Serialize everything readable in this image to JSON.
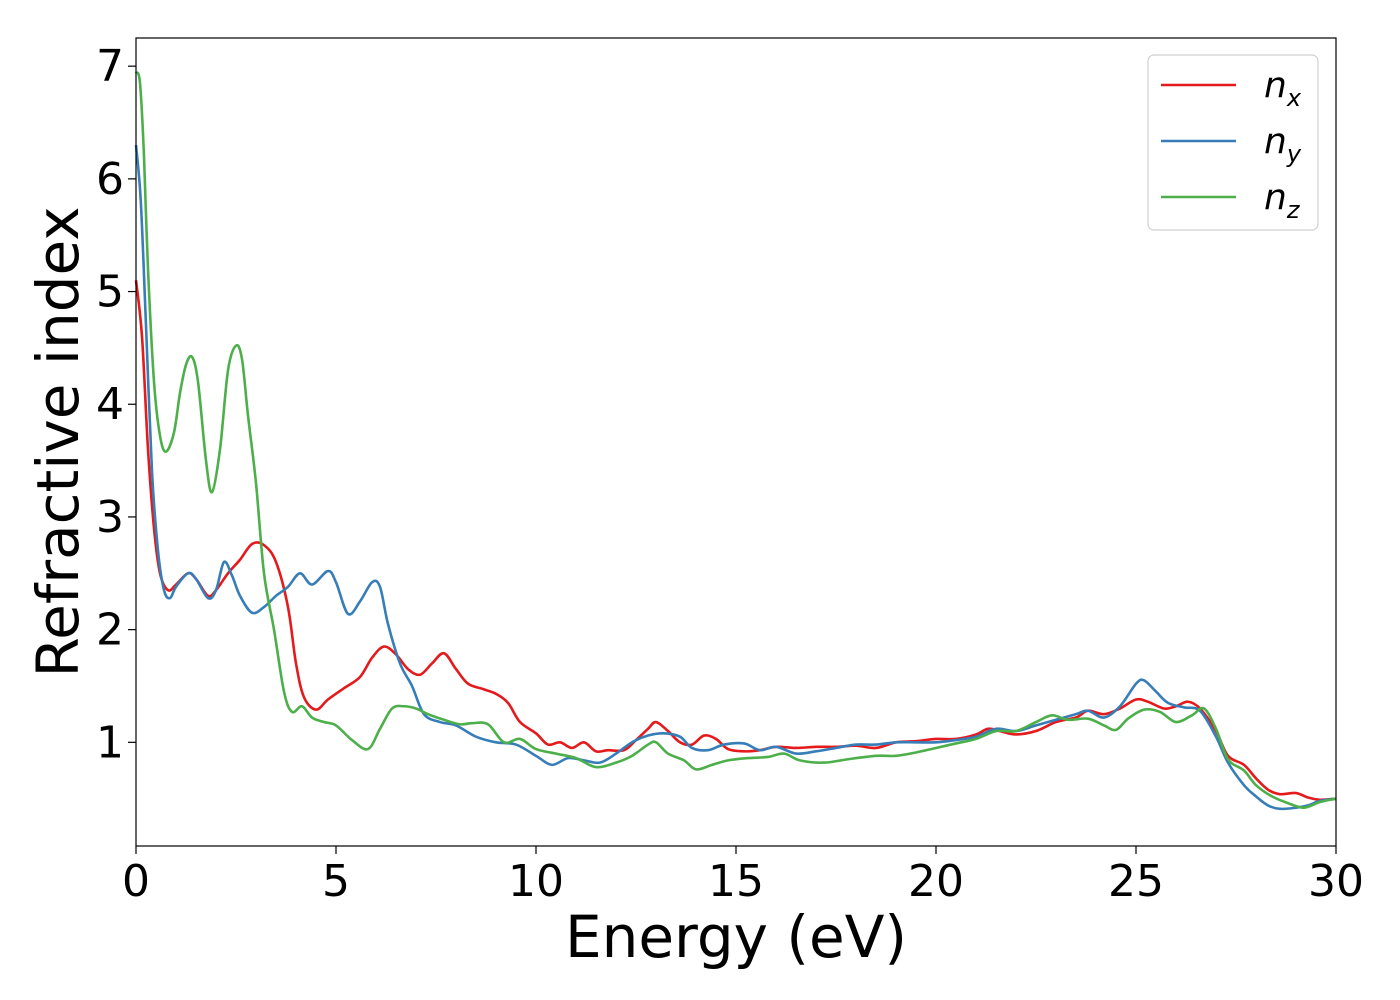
{
  "chart_data": {
    "type": "line",
    "xlabel": "Energy (eV)",
    "ylabel": "Refractive index",
    "xlim": [
      0,
      30
    ],
    "ylim": [
      0.08,
      7.25
    ],
    "xticks": [
      0,
      5,
      10,
      15,
      20,
      25,
      30
    ],
    "yticks": [
      1,
      2,
      3,
      4,
      5,
      6,
      7
    ],
    "grid": false,
    "legend": "top-right",
    "series": [
      {
        "name": "n",
        "subscript": "x",
        "color": "#e41a1c",
        "points": [
          [
            0,
            5.1
          ],
          [
            0.15,
            4.6
          ],
          [
            0.3,
            3.6
          ],
          [
            0.45,
            2.9
          ],
          [
            0.6,
            2.5
          ],
          [
            0.8,
            2.35
          ],
          [
            1.0,
            2.4
          ],
          [
            1.3,
            2.5
          ],
          [
            1.5,
            2.45
          ],
          [
            1.8,
            2.3
          ],
          [
            2.0,
            2.35
          ],
          [
            2.3,
            2.5
          ],
          [
            2.6,
            2.62
          ],
          [
            2.9,
            2.76
          ],
          [
            3.2,
            2.75
          ],
          [
            3.5,
            2.6
          ],
          [
            3.8,
            2.2
          ],
          [
            4.0,
            1.7
          ],
          [
            4.2,
            1.4
          ],
          [
            4.5,
            1.29
          ],
          [
            4.8,
            1.38
          ],
          [
            5.2,
            1.48
          ],
          [
            5.6,
            1.58
          ],
          [
            5.9,
            1.75
          ],
          [
            6.2,
            1.85
          ],
          [
            6.5,
            1.78
          ],
          [
            6.8,
            1.65
          ],
          [
            7.1,
            1.6
          ],
          [
            7.4,
            1.7
          ],
          [
            7.7,
            1.79
          ],
          [
            8.0,
            1.65
          ],
          [
            8.3,
            1.52
          ],
          [
            8.7,
            1.47
          ],
          [
            9.0,
            1.43
          ],
          [
            9.3,
            1.35
          ],
          [
            9.6,
            1.18
          ],
          [
            10.0,
            1.08
          ],
          [
            10.3,
            0.98
          ],
          [
            10.6,
            1.0
          ],
          [
            10.9,
            0.95
          ],
          [
            11.2,
            1.0
          ],
          [
            11.5,
            0.92
          ],
          [
            11.8,
            0.93
          ],
          [
            12.2,
            0.93
          ],
          [
            12.5,
            1.02
          ],
          [
            12.8,
            1.12
          ],
          [
            13.0,
            1.18
          ],
          [
            13.3,
            1.1
          ],
          [
            13.6,
            1.0
          ],
          [
            13.9,
            0.98
          ],
          [
            14.2,
            1.06
          ],
          [
            14.5,
            1.03
          ],
          [
            14.8,
            0.94
          ],
          [
            15.2,
            0.92
          ],
          [
            15.6,
            0.93
          ],
          [
            16.0,
            0.96
          ],
          [
            16.5,
            0.95
          ],
          [
            17.0,
            0.96
          ],
          [
            17.5,
            0.96
          ],
          [
            18.0,
            0.97
          ],
          [
            18.5,
            0.95
          ],
          [
            19.0,
            1.0
          ],
          [
            19.5,
            1.01
          ],
          [
            20.0,
            1.03
          ],
          [
            20.5,
            1.03
          ],
          [
            21.0,
            1.07
          ],
          [
            21.3,
            1.12
          ],
          [
            21.6,
            1.1
          ],
          [
            22.0,
            1.07
          ],
          [
            22.5,
            1.1
          ],
          [
            23.0,
            1.18
          ],
          [
            23.5,
            1.22
          ],
          [
            23.8,
            1.28
          ],
          [
            24.2,
            1.25
          ],
          [
            24.6,
            1.3
          ],
          [
            25.0,
            1.38
          ],
          [
            25.3,
            1.36
          ],
          [
            25.7,
            1.3
          ],
          [
            26.0,
            1.32
          ],
          [
            26.3,
            1.36
          ],
          [
            26.6,
            1.3
          ],
          [
            27.0,
            1.1
          ],
          [
            27.3,
            0.88
          ],
          [
            27.7,
            0.8
          ],
          [
            28.0,
            0.68
          ],
          [
            28.3,
            0.58
          ],
          [
            28.6,
            0.54
          ],
          [
            29.0,
            0.55
          ],
          [
            29.3,
            0.51
          ],
          [
            29.6,
            0.49
          ],
          [
            30.0,
            0.5
          ]
        ]
      },
      {
        "name": "n",
        "subscript": "y",
        "color": "#377eb8",
        "points": [
          [
            0,
            6.3
          ],
          [
            0.12,
            5.8
          ],
          [
            0.25,
            4.7
          ],
          [
            0.4,
            3.4
          ],
          [
            0.55,
            2.7
          ],
          [
            0.7,
            2.35
          ],
          [
            0.85,
            2.28
          ],
          [
            1.0,
            2.38
          ],
          [
            1.3,
            2.5
          ],
          [
            1.5,
            2.45
          ],
          [
            1.8,
            2.28
          ],
          [
            2.0,
            2.35
          ],
          [
            2.2,
            2.6
          ],
          [
            2.4,
            2.48
          ],
          [
            2.6,
            2.3
          ],
          [
            2.9,
            2.15
          ],
          [
            3.2,
            2.2
          ],
          [
            3.5,
            2.3
          ],
          [
            3.8,
            2.38
          ],
          [
            4.1,
            2.5
          ],
          [
            4.4,
            2.4
          ],
          [
            4.8,
            2.52
          ],
          [
            5.0,
            2.42
          ],
          [
            5.3,
            2.14
          ],
          [
            5.6,
            2.25
          ],
          [
            5.9,
            2.42
          ],
          [
            6.1,
            2.38
          ],
          [
            6.3,
            2.05
          ],
          [
            6.6,
            1.7
          ],
          [
            6.9,
            1.5
          ],
          [
            7.2,
            1.25
          ],
          [
            7.6,
            1.18
          ],
          [
            8.0,
            1.15
          ],
          [
            8.5,
            1.05
          ],
          [
            9.0,
            1.0
          ],
          [
            9.5,
            0.98
          ],
          [
            10.0,
            0.88
          ],
          [
            10.4,
            0.8
          ],
          [
            10.8,
            0.86
          ],
          [
            11.2,
            0.84
          ],
          [
            11.6,
            0.82
          ],
          [
            12.0,
            0.9
          ],
          [
            12.4,
            1.0
          ],
          [
            12.8,
            1.06
          ],
          [
            13.2,
            1.08
          ],
          [
            13.6,
            1.05
          ],
          [
            13.9,
            0.95
          ],
          [
            14.3,
            0.93
          ],
          [
            14.7,
            0.98
          ],
          [
            15.2,
            0.99
          ],
          [
            15.6,
            0.93
          ],
          [
            16.0,
            0.96
          ],
          [
            16.5,
            0.9
          ],
          [
            17.0,
            0.92
          ],
          [
            17.5,
            0.95
          ],
          [
            18.0,
            0.98
          ],
          [
            18.5,
            0.98
          ],
          [
            19.0,
            1.0
          ],
          [
            19.5,
            1.0
          ],
          [
            20.0,
            1.0
          ],
          [
            20.5,
            1.02
          ],
          [
            21.0,
            1.05
          ],
          [
            21.5,
            1.12
          ],
          [
            22.0,
            1.1
          ],
          [
            22.5,
            1.15
          ],
          [
            23.0,
            1.2
          ],
          [
            23.5,
            1.25
          ],
          [
            23.8,
            1.28
          ],
          [
            24.2,
            1.22
          ],
          [
            24.6,
            1.32
          ],
          [
            25.0,
            1.52
          ],
          [
            25.2,
            1.55
          ],
          [
            25.5,
            1.45
          ],
          [
            25.8,
            1.35
          ],
          [
            26.2,
            1.31
          ],
          [
            26.6,
            1.28
          ],
          [
            27.0,
            1.05
          ],
          [
            27.3,
            0.82
          ],
          [
            27.7,
            0.62
          ],
          [
            28.0,
            0.52
          ],
          [
            28.3,
            0.44
          ],
          [
            28.6,
            0.41
          ],
          [
            29.0,
            0.42
          ],
          [
            29.3,
            0.44
          ],
          [
            29.6,
            0.48
          ],
          [
            30.0,
            0.5
          ]
        ]
      },
      {
        "name": "n",
        "subscript": "z",
        "color": "#4daf4a",
        "points": [
          [
            0,
            6.95
          ],
          [
            0.1,
            6.85
          ],
          [
            0.2,
            6.2
          ],
          [
            0.3,
            5.2
          ],
          [
            0.45,
            4.2
          ],
          [
            0.6,
            3.72
          ],
          [
            0.75,
            3.58
          ],
          [
            0.95,
            3.75
          ],
          [
            1.1,
            4.1
          ],
          [
            1.25,
            4.35
          ],
          [
            1.4,
            4.42
          ],
          [
            1.55,
            4.2
          ],
          [
            1.75,
            3.5
          ],
          [
            1.9,
            3.22
          ],
          [
            2.1,
            3.6
          ],
          [
            2.3,
            4.3
          ],
          [
            2.5,
            4.52
          ],
          [
            2.65,
            4.4
          ],
          [
            2.8,
            3.9
          ],
          [
            3.0,
            3.3
          ],
          [
            3.2,
            2.5
          ],
          [
            3.45,
            2.0
          ],
          [
            3.7,
            1.45
          ],
          [
            3.9,
            1.27
          ],
          [
            4.15,
            1.32
          ],
          [
            4.4,
            1.22
          ],
          [
            4.7,
            1.18
          ],
          [
            5.0,
            1.15
          ],
          [
            5.4,
            1.02
          ],
          [
            5.8,
            0.94
          ],
          [
            6.1,
            1.12
          ],
          [
            6.4,
            1.3
          ],
          [
            6.7,
            1.32
          ],
          [
            7.0,
            1.3
          ],
          [
            7.3,
            1.25
          ],
          [
            7.7,
            1.2
          ],
          [
            8.1,
            1.16
          ],
          [
            8.4,
            1.17
          ],
          [
            8.8,
            1.16
          ],
          [
            9.2,
            1.0
          ],
          [
            9.6,
            1.03
          ],
          [
            10.0,
            0.94
          ],
          [
            10.5,
            0.9
          ],
          [
            11.0,
            0.86
          ],
          [
            11.5,
            0.78
          ],
          [
            12.0,
            0.82
          ],
          [
            12.4,
            0.88
          ],
          [
            12.8,
            0.98
          ],
          [
            13.0,
            1.0
          ],
          [
            13.3,
            0.9
          ],
          [
            13.7,
            0.84
          ],
          [
            14.0,
            0.76
          ],
          [
            14.4,
            0.8
          ],
          [
            14.8,
            0.84
          ],
          [
            15.3,
            0.86
          ],
          [
            15.8,
            0.87
          ],
          [
            16.2,
            0.9
          ],
          [
            16.6,
            0.84
          ],
          [
            17.2,
            0.82
          ],
          [
            17.8,
            0.85
          ],
          [
            18.5,
            0.88
          ],
          [
            19.0,
            0.88
          ],
          [
            19.5,
            0.91
          ],
          [
            20.0,
            0.95
          ],
          [
            20.5,
            0.99
          ],
          [
            21.0,
            1.03
          ],
          [
            21.5,
            1.1
          ],
          [
            22.0,
            1.1
          ],
          [
            22.5,
            1.18
          ],
          [
            22.9,
            1.24
          ],
          [
            23.3,
            1.2
          ],
          [
            23.8,
            1.21
          ],
          [
            24.2,
            1.15
          ],
          [
            24.5,
            1.11
          ],
          [
            24.8,
            1.21
          ],
          [
            25.2,
            1.29
          ],
          [
            25.6,
            1.27
          ],
          [
            26.0,
            1.18
          ],
          [
            26.4,
            1.24
          ],
          [
            26.7,
            1.3
          ],
          [
            27.0,
            1.12
          ],
          [
            27.3,
            0.85
          ],
          [
            27.7,
            0.75
          ],
          [
            28.0,
            0.62
          ],
          [
            28.4,
            0.52
          ],
          [
            28.8,
            0.46
          ],
          [
            29.2,
            0.42
          ],
          [
            29.6,
            0.47
          ],
          [
            30.0,
            0.5
          ]
        ]
      }
    ]
  }
}
